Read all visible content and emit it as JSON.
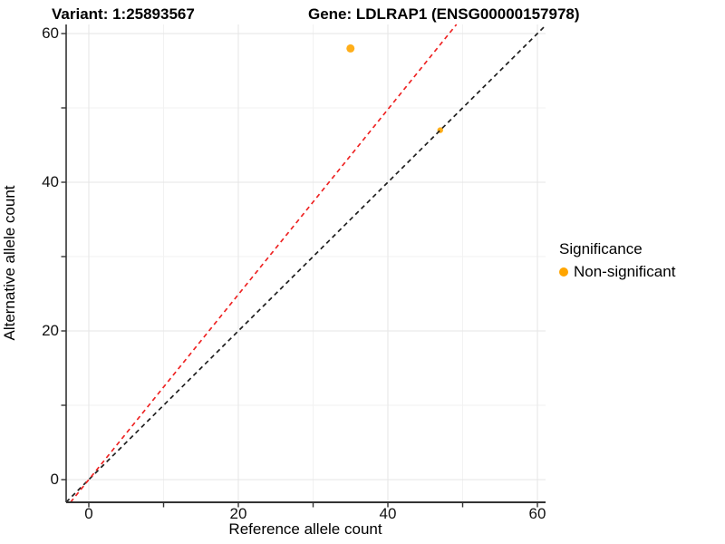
{
  "titles": {
    "variant": "Variant: 1:25893567",
    "gene": "Gene: LDLRAP1 (ENSG00000157978)"
  },
  "axes": {
    "x": {
      "label": "Reference allele count",
      "major_ticks": [
        0,
        20,
        40,
        60
      ],
      "minor_ticks": [
        10,
        30,
        50
      ],
      "range": [
        -3.03,
        61.09
      ]
    },
    "y": {
      "label": "Alternative allele count",
      "major_ticks": [
        0,
        20,
        40,
        60
      ],
      "minor_ticks": [
        10,
        30,
        50
      ],
      "range": [
        -3.05,
        61.22
      ]
    }
  },
  "legend": {
    "title": "Significance",
    "items": [
      {
        "label": "Non-significant",
        "color": "#FFA500"
      }
    ]
  },
  "chart_data": {
    "type": "scatter",
    "title": "Variant: 1:25893567 | Gene: LDLRAP1 (ENSG00000157978)",
    "xlabel": "Reference allele count",
    "ylabel": "Alternative allele count",
    "xlim": [
      -3.03,
      61.09
    ],
    "ylim": [
      -3.05,
      61.22
    ],
    "grid": true,
    "legend_position": "right",
    "series": [
      {
        "name": "Non-significant",
        "color": "#FFA500",
        "point_opacity": 0.9,
        "points": [
          {
            "x": 35,
            "y": 58,
            "r": 4.5
          },
          {
            "x": 47,
            "y": 47,
            "r": 3.2
          }
        ]
      }
    ],
    "lines": [
      {
        "name": "identity-line",
        "slope": 1.0,
        "intercept": 0,
        "color": "#1f1f1f",
        "dash": "5,4",
        "width": 1.7
      },
      {
        "name": "fitted-line",
        "slope": 1.245,
        "intercept": 0,
        "color": "#EE2222",
        "dash": "5,4",
        "width": 1.7
      }
    ],
    "colors": {
      "grid_major": "#e6e6e6",
      "grid_minor": "#f2f2f2",
      "axis_line": "#333333",
      "tick_mark": "#333333"
    }
  }
}
